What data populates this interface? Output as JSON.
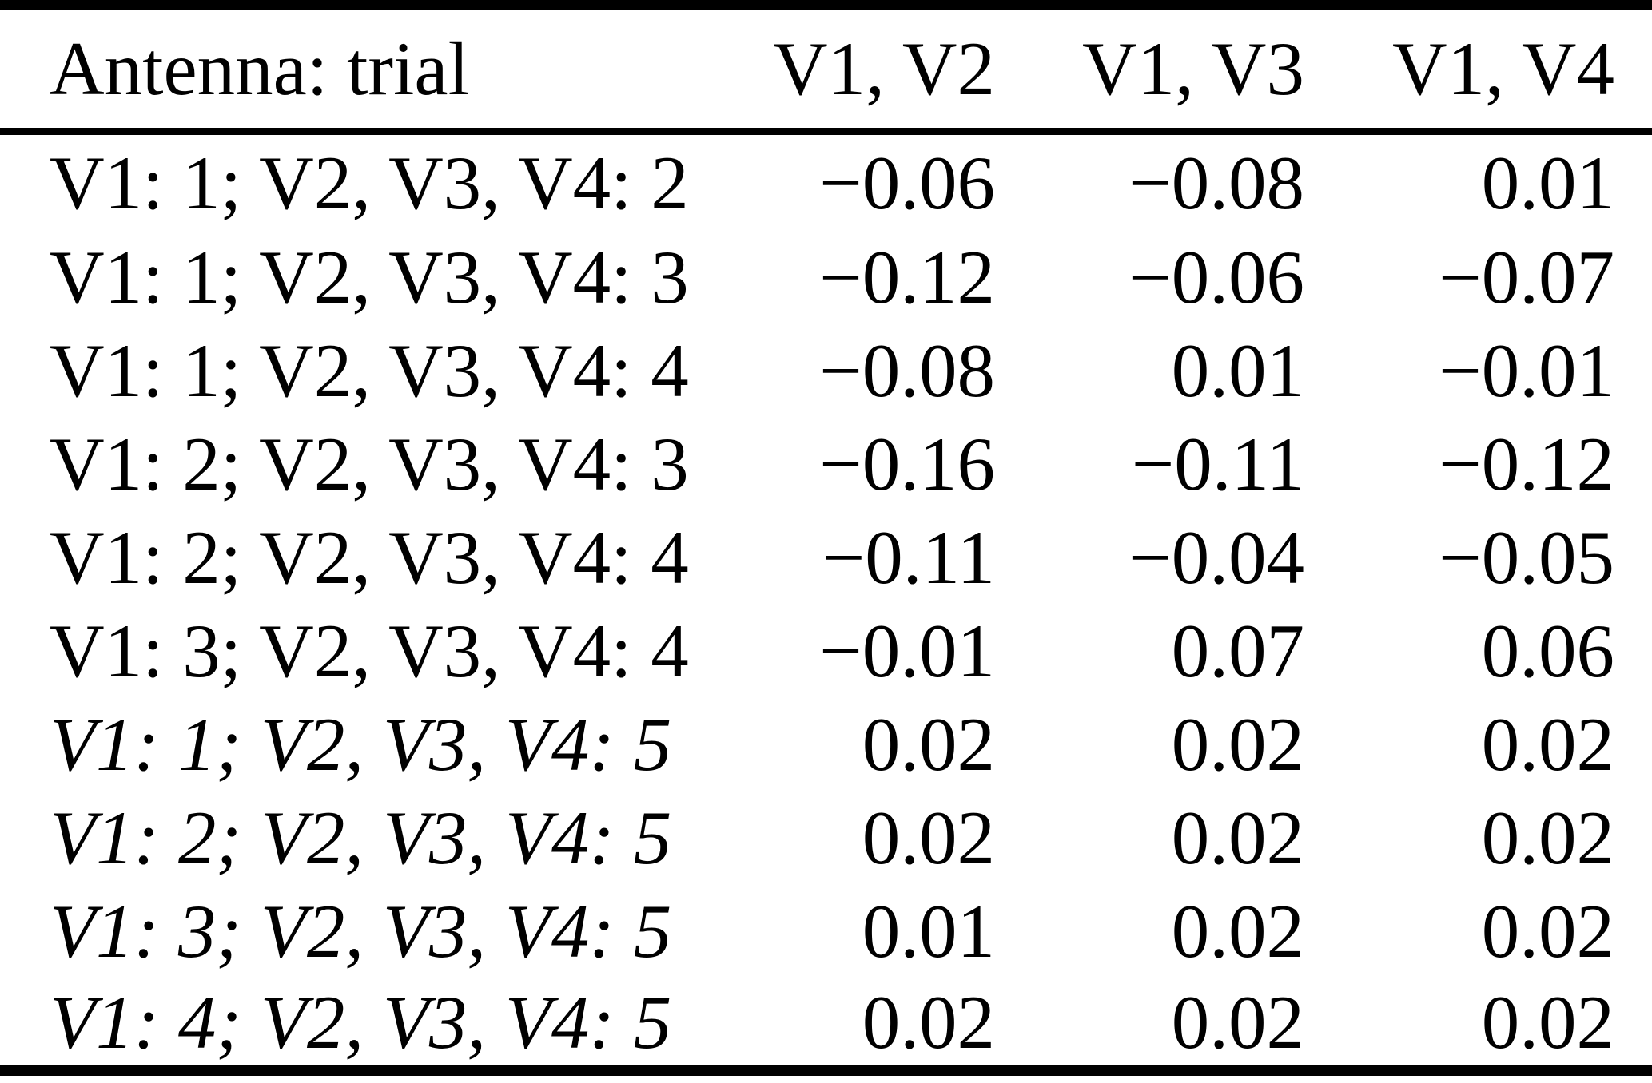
{
  "table": {
    "columns": {
      "label": "Antenna: trial",
      "v1v2": "V1, V2",
      "v1v3": "V1, V3",
      "v1v4": "V1, V4"
    },
    "rows": [
      {
        "label": "V1: 1; V2, V3, V4: 2",
        "italic": false,
        "values": [
          "−0.06",
          "−0.08",
          "0.01"
        ]
      },
      {
        "label": "V1: 1; V2, V3, V4: 3",
        "italic": false,
        "values": [
          "−0.12",
          "−0.06",
          "−0.07"
        ]
      },
      {
        "label": "V1: 1; V2, V3, V4: 4",
        "italic": false,
        "values": [
          "−0.08",
          "0.01",
          "−0.01"
        ]
      },
      {
        "label": "V1: 2; V2, V3, V4: 3",
        "italic": false,
        "values": [
          "−0.16",
          "−0.11",
          "−0.12"
        ]
      },
      {
        "label": "V1: 2; V2, V3, V4: 4",
        "italic": false,
        "values": [
          "−0.11",
          "−0.04",
          "−0.05"
        ]
      },
      {
        "label": "V1: 3; V2, V3, V4: 4",
        "italic": false,
        "values": [
          "−0.01",
          "0.07",
          "0.06"
        ]
      },
      {
        "label": "V1: 1; V2, V3, V4: 5",
        "italic": true,
        "values": [
          "0.02",
          "0.02",
          "0.02"
        ]
      },
      {
        "label": "V1: 2; V2, V3, V4: 5",
        "italic": true,
        "values": [
          "0.02",
          "0.02",
          "0.02"
        ]
      },
      {
        "label": "V1: 3; V2, V3, V4: 5",
        "italic": true,
        "values": [
          "0.01",
          "0.02",
          "0.02"
        ]
      },
      {
        "label": "V1: 4; V2, V3, V4: 5",
        "italic": true,
        "values": [
          "0.02",
          "0.02",
          "0.02"
        ]
      }
    ]
  }
}
